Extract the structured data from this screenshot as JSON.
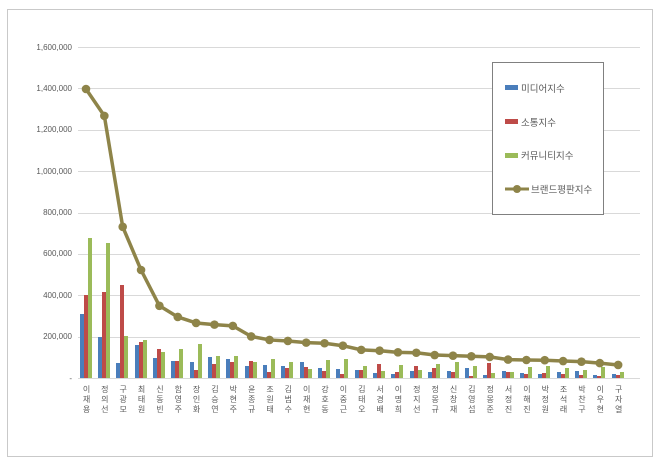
{
  "chart_data": {
    "type": "bar",
    "subtype": "grouped-bars-with-line-overlay",
    "title": "",
    "categories": [
      "이재용",
      "정의선",
      "구광모",
      "최태원",
      "신동빈",
      "함영주",
      "장인화",
      "김승연",
      "박현주",
      "윤종규",
      "조원태",
      "김범수",
      "이재현",
      "강호동",
      "이중근",
      "김태오",
      "서경배",
      "이명희",
      "정지선",
      "정몽규",
      "신창재",
      "김영섭",
      "정몽준",
      "서정진",
      "이해진",
      "박정원",
      "조석래",
      "박찬구",
      "이우현",
      "구자열"
    ],
    "series": [
      {
        "name": "미디어지수",
        "type": "bar",
        "color": "#4a7ebb",
        "values": [
          310000,
          198000,
          73000,
          160000,
          95000,
          83000,
          76000,
          100000,
          90000,
          58000,
          64000,
          56000,
          75000,
          48000,
          44000,
          40000,
          24000,
          20000,
          33000,
          27000,
          35000,
          47000,
          15000,
          35000,
          24000,
          19000,
          31000,
          34000,
          15000,
          19000
        ]
      },
      {
        "name": "소통지수",
        "type": "bar",
        "color": "#be4b48",
        "values": [
          402000,
          417000,
          449000,
          176000,
          140000,
          80000,
          38000,
          68000,
          75000,
          84000,
          31000,
          47000,
          55000,
          36000,
          18000,
          40000,
          68000,
          28000,
          56000,
          47000,
          27000,
          8000,
          71000,
          31000,
          19000,
          24000,
          19000,
          14000,
          8000,
          15000
        ]
      },
      {
        "name": "커뮤니티지수",
        "type": "bar",
        "color": "#9bbb59",
        "values": [
          677000,
          651000,
          204000,
          186000,
          126000,
          141000,
          162000,
          107000,
          106000,
          76000,
          91000,
          76000,
          42000,
          88000,
          90000,
          60000,
          35000,
          64000,
          41000,
          69000,
          76000,
          58000,
          26000,
          31000,
          52000,
          56000,
          47000,
          39000,
          54000,
          30000
        ]
      },
      {
        "name": "브랜드평판지수",
        "type": "line",
        "color": "#8e8449",
        "values": [
          1397000,
          1267000,
          731000,
          522000,
          349000,
          295000,
          266000,
          258000,
          252000,
          201000,
          184000,
          179000,
          171000,
          168000,
          156000,
          136000,
          132000,
          124000,
          122000,
          111000,
          108000,
          105000,
          102000,
          89000,
          87000,
          86000,
          82000,
          79000,
          72000,
          63000
        ]
      }
    ],
    "y_axis": {
      "min": 0,
      "max": 1600000,
      "tick_interval": 200000,
      "tick_labels": [
        "1,600,000",
        "1,400,000",
        "1,200,000",
        "1,000,000",
        "800,000",
        "600,000",
        "400,000",
        "200,000",
        "-"
      ]
    },
    "x_axis": {
      "label_orientation": "vertical"
    },
    "grid": true,
    "legend_position": "top-right-inside",
    "background_color": "#ffffff",
    "gridline_color": "#d9d9d9",
    "text_color": "#595959"
  }
}
